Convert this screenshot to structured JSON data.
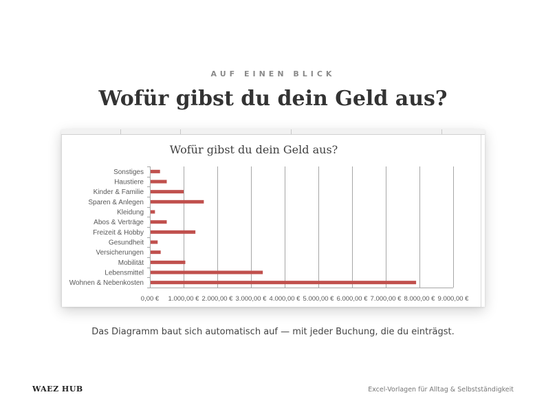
{
  "header": {
    "eyebrow": "AUF EINEN BLICK",
    "headline": "Wofür gibst du dein Geld aus?"
  },
  "caption": "Das Diagramm baut sich automatisch auf — mit jeder Buchung, die du einträgst.",
  "footer": {
    "brand": "WAEZ HUB",
    "tagline": "Excel-Vorlagen für Alltag & Selbstständigkeit"
  },
  "colors": {
    "bar": "#c0504d",
    "grid": "#a6a6a6",
    "axis_text": "#595959",
    "title_text": "#404040"
  },
  "chart_data": {
    "type": "bar",
    "orientation": "horizontal",
    "title": "Wofür gibst du dein Geld aus?",
    "xlabel": "",
    "ylabel": "",
    "categories": [
      "Sonstiges",
      "Haustiere",
      "Kinder & Familie",
      "Sparen & Anlegen",
      "Kleidung",
      "Abos & Verträge",
      "Freizeit & Hobby",
      "Gesundheit",
      "Versicherungen",
      "Mobilität",
      "Lebensmittel",
      "Wohnen & Nebenkosten"
    ],
    "values": [
      300,
      500,
      1000,
      1600,
      150,
      500,
      1350,
      230,
      320,
      1050,
      3350,
      7900
    ],
    "xlim": [
      0,
      9000
    ],
    "xticks": [
      0,
      1000,
      2000,
      3000,
      4000,
      5000,
      6000,
      7000,
      8000,
      9000
    ],
    "xtick_labels": [
      "0,00 €",
      "1.000,00 €",
      "2.000,00 €",
      "3.000,00 €",
      "4.000,00 €",
      "5.000,00 €",
      "6.000,00 €",
      "7.000,00 €",
      "8.000,00 €",
      "9.000,00 €"
    ],
    "grid": true,
    "legend": "none"
  }
}
